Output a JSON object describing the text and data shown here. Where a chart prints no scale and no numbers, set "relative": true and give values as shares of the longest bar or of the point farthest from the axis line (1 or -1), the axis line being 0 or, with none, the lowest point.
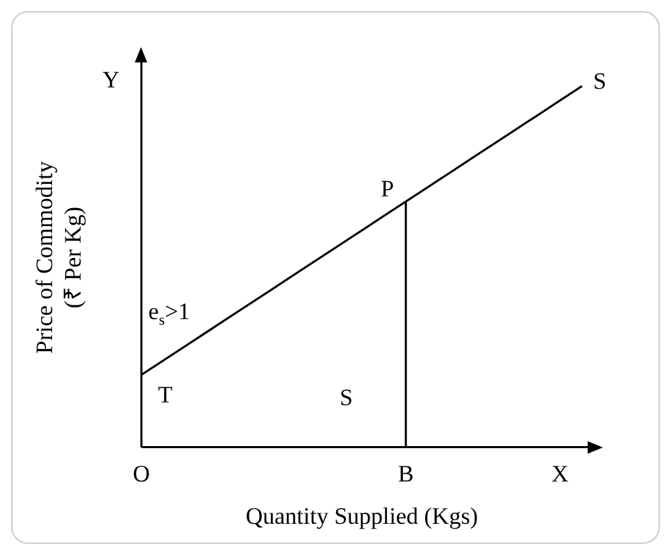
{
  "chart_data": {
    "type": "line",
    "relative": true,
    "xlabel": "Quantity Supplied (Kgs)",
    "ylabel": "Price of Commodity\n(₹ Per Kg)",
    "categories": [
      "O",
      null,
      null,
      null,
      null,
      null,
      null,
      null,
      null,
      null,
      null,
      null,
      "B",
      null,
      null,
      null,
      null,
      null,
      null,
      "X",
      null
    ],
    "series": [
      {
        "color": "#000000",
        "values": [
          0.2,
          0.24,
          0.28,
          0.32,
          0.36,
          0.4,
          0.44,
          0.48,
          0.52,
          0.56,
          0.6,
          0.64,
          0.68,
          0.72,
          0.76,
          0.8,
          0.84,
          0.88,
          0.92,
          0.96,
          1.0
        ]
      }
    ],
    "ref_lines": [
      {
        "axis": "x",
        "value": "B",
        "color": "#000000"
      }
    ],
    "annotations": [
      {
        "text": "P",
        "x": "B",
        "y": 0.68
      },
      "S",
      "Y",
      "e$_{s}$>1",
      "T",
      "S"
    ],
    "grid": false,
    "legend": false,
    "marker": "none",
    "line_style": "solid"
  }
}
